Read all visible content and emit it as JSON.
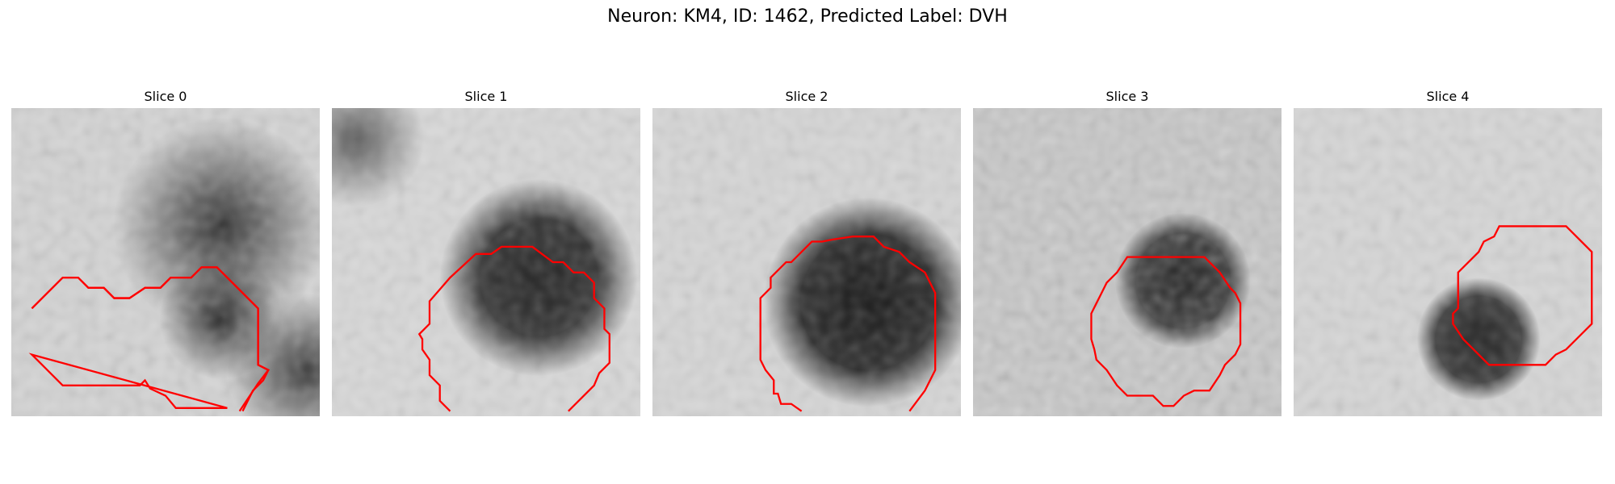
{
  "figure": {
    "title": "Neuron: KM4, ID: 1462, Predicted Label: DVH"
  },
  "slices": [
    {
      "label": "Slice 0"
    },
    {
      "label": "Slice 1"
    },
    {
      "label": "Slice 2"
    },
    {
      "label": "Slice 3"
    },
    {
      "label": "Slice 4"
    }
  ],
  "colors": {
    "contour": "#ff0000",
    "background": "#ffffff"
  }
}
